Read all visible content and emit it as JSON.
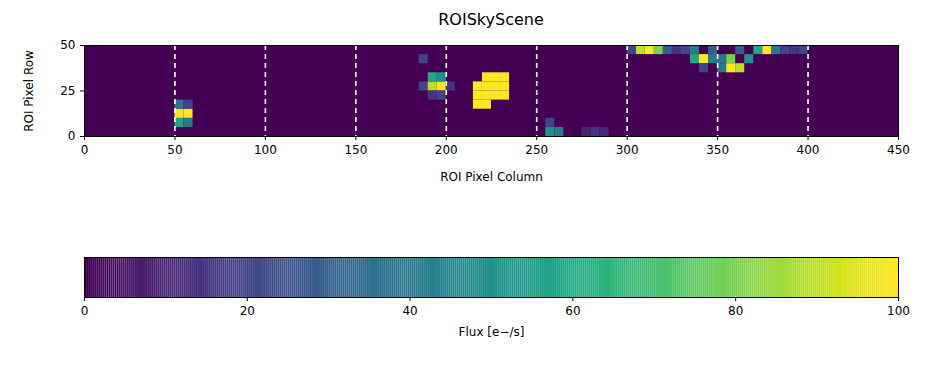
{
  "chart_data": {
    "type": "heatmap",
    "title": "ROISkyScene",
    "x_label": "ROI Pixel Column",
    "y_label": "ROI Pixel Row",
    "xlim": [
      0,
      450
    ],
    "ylim": [
      0,
      50
    ],
    "xticks": [
      0,
      50,
      100,
      150,
      200,
      250,
      300,
      350,
      400,
      450
    ],
    "yticks": [
      0,
      25,
      50
    ],
    "vlines": [
      50,
      100,
      150,
      200,
      250,
      300,
      350,
      400
    ],
    "line_style": "dashed",
    "cell_size": 5,
    "cells": {
      "x": [
        50,
        50,
        50,
        55,
        55,
        55,
        185,
        190,
        190,
        195,
        195,
        190,
        195,
        200,
        185,
        215,
        215,
        220,
        220,
        220,
        220,
        225,
        225,
        225,
        230,
        230,
        230,
        215,
        255,
        255,
        260,
        275,
        280,
        285,
        305,
        310,
        315,
        320,
        300,
        325,
        330,
        335,
        340,
        335,
        345,
        340,
        350,
        355,
        360,
        355,
        365,
        345,
        360,
        350,
        370,
        375,
        380,
        385,
        390,
        395
      ],
      "y": [
        5,
        10,
        15,
        5,
        10,
        15,
        25,
        25,
        30,
        25,
        30,
        20,
        20,
        25,
        40,
        15,
        20,
        15,
        20,
        25,
        30,
        20,
        25,
        30,
        20,
        25,
        30,
        25,
        0,
        5,
        0,
        0,
        0,
        0,
        45,
        45,
        45,
        45,
        45,
        45,
        45,
        40,
        40,
        45,
        40,
        35,
        35,
        35,
        35,
        40,
        40,
        45,
        45,
        40,
        45,
        45,
        45,
        45,
        45,
        45
      ],
      "values": [
        60,
        100,
        40,
        40,
        100,
        20,
        20,
        90,
        60,
        100,
        50,
        15,
        20,
        15,
        20,
        100,
        100,
        100,
        100,
        100,
        100,
        100,
        100,
        100,
        100,
        100,
        100,
        100,
        50,
        20,
        40,
        10,
        15,
        10,
        90,
        100,
        80,
        30,
        20,
        15,
        20,
        60,
        100,
        40,
        40,
        20,
        40,
        100,
        90,
        80,
        50,
        30,
        30,
        40,
        60,
        100,
        40,
        20,
        15,
        20
      ]
    },
    "colorbar": {
      "label": "Flux [e−/s]",
      "clim": [
        0,
        100
      ],
      "ticks": [
        0,
        20,
        40,
        60,
        80,
        100
      ]
    }
  }
}
